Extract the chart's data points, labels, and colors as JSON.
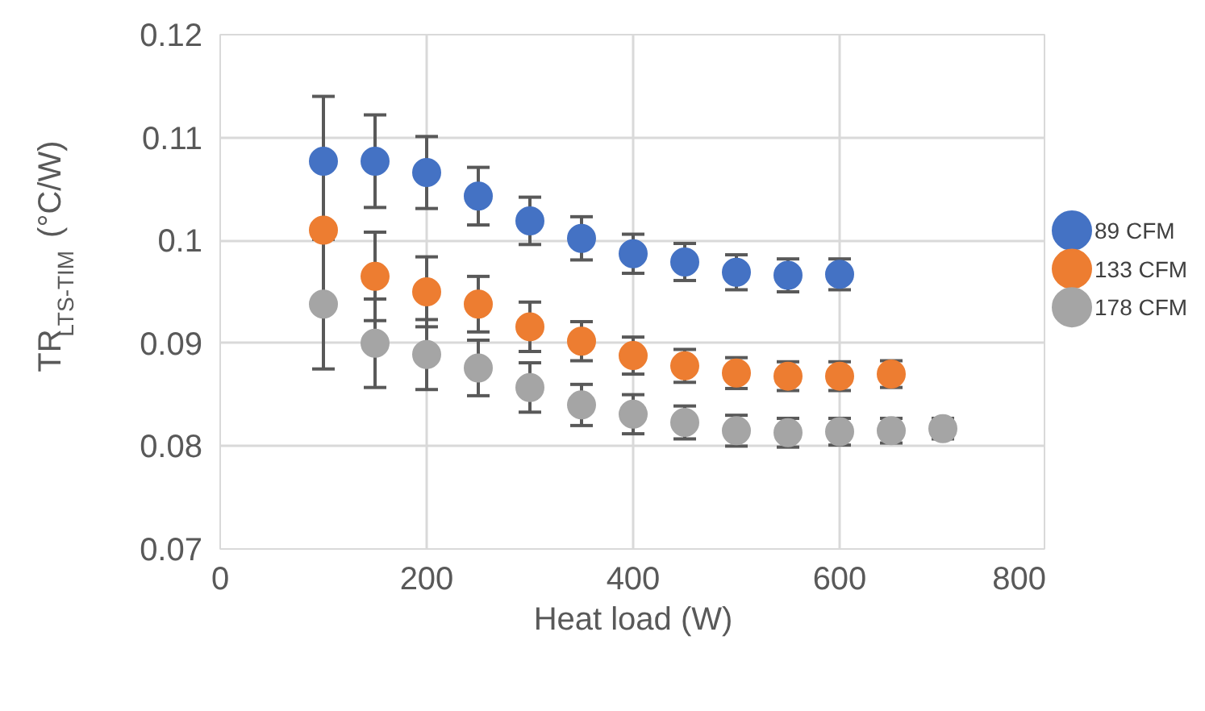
{
  "chart_data": {
    "type": "scatter",
    "xlabel": "Heat load (W)",
    "ylabel": "TR$_{LTS-TIM}$ (°C/W)",
    "x": [
      100,
      150,
      200,
      250,
      300,
      350,
      400,
      450,
      500,
      550,
      600,
      650,
      700
    ],
    "series": [
      {
        "name": "89 CFM",
        "color": "#4472c4",
        "values": [
          0.1077,
          0.1077,
          0.1066,
          0.1043,
          0.1019,
          0.1002,
          0.0987,
          0.0979,
          0.0969,
          0.0966,
          0.0967,
          null,
          null
        ],
        "errors": [
          0.0063,
          0.0045,
          0.0035,
          0.0028,
          0.0023,
          0.0021,
          0.0019,
          0.0018,
          0.0017,
          0.0016,
          0.0015,
          null,
          null
        ]
      },
      {
        "name": "133 CFM",
        "color": "#ed7d31",
        "values": [
          0.101,
          0.0965,
          0.095,
          0.0938,
          0.0916,
          0.0902,
          0.0888,
          0.0878,
          0.0871,
          0.0868,
          0.0868,
          0.087,
          null
        ],
        "errors": [
          0.0065,
          0.0043,
          0.0034,
          0.0027,
          0.0024,
          0.0019,
          0.0018,
          0.0016,
          0.0015,
          0.0014,
          0.0014,
          0.0013,
          null
        ]
      },
      {
        "name": "178 CFM",
        "color": "#a5a5a5",
        "values": [
          0.0938,
          0.09,
          0.0889,
          0.0876,
          0.0857,
          0.084,
          0.0831,
          0.0823,
          0.0815,
          0.0813,
          0.0814,
          0.0815,
          0.0817
        ],
        "errors": [
          0.0063,
          0.0043,
          0.0034,
          0.0027,
          0.0024,
          0.002,
          0.0019,
          0.0016,
          0.0015,
          0.0014,
          0.0013,
          0.0012,
          0.001
        ]
      }
    ],
    "xlim": [
      0,
      800
    ],
    "xticks": [
      0,
      200,
      400,
      600,
      800
    ],
    "ylim": [
      0.07,
      0.12
    ],
    "yticks": [
      {
        "value": 0.07,
        "label": "0.07"
      },
      {
        "value": 0.08,
        "label": "0.08"
      },
      {
        "value": 0.09,
        "label": "0.09"
      },
      {
        "value": 0.1,
        "label": "0.1"
      },
      {
        "value": 0.11,
        "label": "0.11"
      },
      {
        "value": 0.12,
        "label": "0.12"
      }
    ],
    "grid": true,
    "legend": "right",
    "marker": "circle"
  }
}
